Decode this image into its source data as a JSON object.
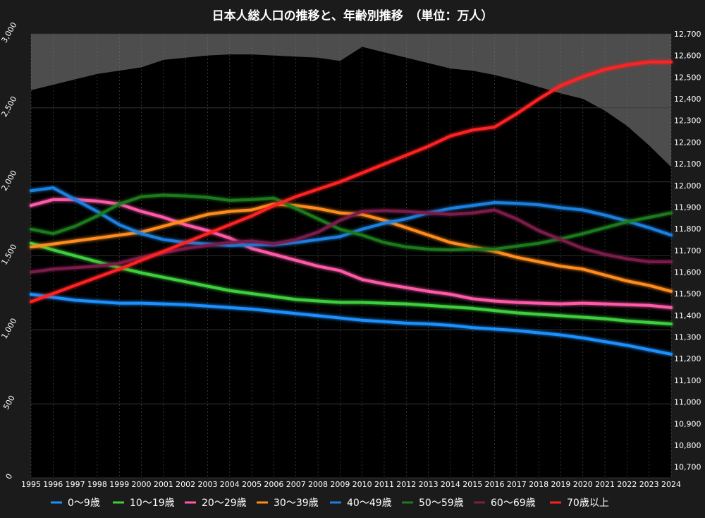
{
  "title": "日本人総人口の推移と、年齢別推移　（単位：万人）",
  "chart_data": {
    "type": "line",
    "title": "日本人総人口の推移と、年齢別推移　（単位：万人）",
    "x": [
      1995,
      1996,
      1997,
      1998,
      1999,
      2000,
      2001,
      2002,
      2003,
      2004,
      2005,
      2006,
      2007,
      2008,
      2009,
      2010,
      2011,
      2012,
      2013,
      2014,
      2015,
      2016,
      2017,
      2018,
      2019,
      2020,
      2021,
      2022,
      2023,
      2024
    ],
    "x_tick_labels": [
      "1995",
      "1996",
      "1997",
      "1998",
      "1999",
      "2000",
      "2001",
      "2002",
      "2003",
      "2004",
      "2005",
      "2006",
      "2007",
      "2008",
      "2009",
      "2010",
      "2011",
      "2012",
      "2013",
      "2014",
      "2015",
      "2016",
      "2017",
      "2018",
      "2019",
      "2020",
      "2021",
      "2022",
      "2023",
      "2024"
    ],
    "y_left": {
      "ylim": [
        0,
        3000
      ],
      "ticks": [
        0,
        500,
        1000,
        1500,
        2000,
        2500,
        3000
      ],
      "tick_labels": [
        "0",
        "500",
        "1,000",
        "1,500",
        "2,000",
        "2,500",
        "3,000"
      ]
    },
    "y_right": {
      "ylim": [
        10650,
        12700
      ],
      "ticks": [
        10700,
        10800,
        10900,
        11000,
        11100,
        11200,
        11300,
        11400,
        11500,
        11600,
        11700,
        11800,
        11900,
        12000,
        12100,
        12200,
        12300,
        12400,
        12500,
        12600,
        12700
      ],
      "tick_labels": [
        "10,700",
        "10,800",
        "10,900",
        "11,000",
        "11,100",
        "11,200",
        "11,300",
        "11,400",
        "11,500",
        "11,600",
        "11,700",
        "11,800",
        "11,900",
        "12,000",
        "12,100",
        "12,200",
        "12,300",
        "12,400",
        "12,500",
        "12,600",
        "12,700"
      ]
    },
    "total_population": [
      12440,
      12465,
      12490,
      12515,
      12530,
      12545,
      12580,
      12590,
      12600,
      12605,
      12605,
      12600,
      12595,
      12590,
      12575,
      12640,
      12615,
      12590,
      12565,
      12540,
      12530,
      12510,
      12485,
      12455,
      12425,
      12400,
      12345,
      12275,
      12185,
      12085
    ],
    "total_color": "#5a5a5a",
    "series": [
      {
        "name": "0〜9歳",
        "color": "#1e90ff",
        "values": [
          1240,
          1220,
          1200,
          1190,
          1180,
          1180,
          1175,
          1170,
          1160,
          1150,
          1140,
          1125,
          1110,
          1095,
          1080,
          1065,
          1055,
          1045,
          1040,
          1030,
          1015,
          1005,
          995,
          980,
          965,
          945,
          920,
          895,
          865,
          835
        ]
      },
      {
        "name": "10〜19歳",
        "color": "#3ccf3c",
        "values": [
          1585,
          1540,
          1500,
          1460,
          1420,
          1385,
          1355,
          1325,
          1295,
          1265,
          1245,
          1225,
          1205,
          1195,
          1185,
          1185,
          1180,
          1175,
          1165,
          1155,
          1145,
          1130,
          1115,
          1105,
          1095,
          1085,
          1075,
          1060,
          1050,
          1040
        ]
      },
      {
        "name": "20〜29歳",
        "color": "#ff5aa8",
        "values": [
          1840,
          1880,
          1880,
          1870,
          1850,
          1800,
          1760,
          1710,
          1670,
          1620,
          1550,
          1510,
          1470,
          1430,
          1400,
          1340,
          1310,
          1285,
          1260,
          1240,
          1210,
          1195,
          1185,
          1180,
          1175,
          1180,
          1175,
          1170,
          1165,
          1150
        ]
      },
      {
        "name": "30〜39歳",
        "color": "#ff8c1a",
        "values": [
          1560,
          1580,
          1600,
          1620,
          1640,
          1660,
          1700,
          1740,
          1780,
          1800,
          1810,
          1850,
          1840,
          1820,
          1790,
          1780,
          1740,
          1690,
          1640,
          1590,
          1560,
          1530,
          1490,
          1460,
          1430,
          1410,
          1370,
          1330,
          1300,
          1260
        ]
      },
      {
        "name": "40〜49歳",
        "color": "#1a80e0",
        "values": [
          1940,
          1960,
          1880,
          1800,
          1710,
          1650,
          1610,
          1590,
          1580,
          1570,
          1575,
          1575,
          1590,
          1610,
          1630,
          1680,
          1720,
          1750,
          1790,
          1820,
          1840,
          1860,
          1855,
          1845,
          1825,
          1810,
          1775,
          1735,
          1690,
          1640
        ]
      },
      {
        "name": "50〜59歳",
        "color": "#1f7a1f",
        "values": [
          1680,
          1650,
          1700,
          1770,
          1850,
          1900,
          1910,
          1905,
          1895,
          1875,
          1880,
          1890,
          1820,
          1750,
          1680,
          1640,
          1590,
          1560,
          1545,
          1540,
          1545,
          1545,
          1565,
          1585,
          1615,
          1650,
          1690,
          1730,
          1760,
          1790
        ]
      },
      {
        "name": "60〜69歳",
        "color": "#7a1f4a",
        "values": [
          1390,
          1410,
          1420,
          1430,
          1450,
          1490,
          1520,
          1550,
          1570,
          1590,
          1600,
          1580,
          1610,
          1660,
          1740,
          1800,
          1805,
          1800,
          1790,
          1780,
          1790,
          1810,
          1750,
          1670,
          1610,
          1550,
          1510,
          1480,
          1460,
          1460
        ]
      },
      {
        "name": "70歳以上",
        "color": "#ff2020",
        "values": [
          1190,
          1245,
          1300,
          1355,
          1410,
          1470,
          1530,
          1590,
          1650,
          1710,
          1770,
          1840,
          1900,
          1950,
          2000,
          2060,
          2120,
          2180,
          2240,
          2310,
          2350,
          2370,
          2460,
          2560,
          2650,
          2710,
          2760,
          2790,
          2810,
          2810
        ]
      }
    ],
    "grid": true,
    "legend": "bottom"
  }
}
